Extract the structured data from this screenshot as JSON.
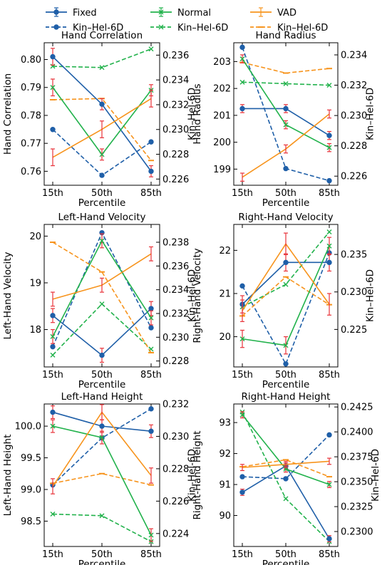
{
  "legend": [
    {
      "label": "Fixed",
      "color": "#1f5fa8",
      "style": "solid",
      "marker": "circle-errorbar"
    },
    {
      "label": "Normal",
      "color": "#22b24c",
      "style": "solid",
      "marker": "x-errorbar"
    },
    {
      "label": "VAD",
      "color": "#f7941d",
      "style": "solid",
      "marker": "errorbar"
    },
    {
      "label": "Kin–Hel-6D",
      "color": "#1f5fa8",
      "style": "dashed",
      "marker": "circle"
    },
    {
      "label": "Kin–Hel-6D",
      "color": "#22b24c",
      "style": "dashed",
      "marker": "x"
    },
    {
      "label": "Kin–Hel-6D",
      "color": "#f7941d",
      "style": "dashed",
      "marker": "dash"
    }
  ],
  "colors": {
    "Fixed": "#1f5fa8",
    "Normal": "#22b24c",
    "VAD": "#f7941d",
    "errorbar": "#e8333a"
  },
  "chart_data": [
    {
      "type": "line",
      "title": "Hand Correlation",
      "categories": [
        "15th",
        "50th",
        "85th"
      ],
      "xlabel": "Percentile",
      "ylabel": "Hand Correlation",
      "y2label": "Kin–Hel-6D",
      "ylim": [
        0.755,
        0.806
      ],
      "yticks": [
        0.76,
        0.77,
        0.78,
        0.79,
        0.8
      ],
      "ytick_labels": [
        "0.76",
        "0.77",
        "0.78",
        "0.79",
        "0.80"
      ],
      "y2lim": [
        0.2255,
        0.237
      ],
      "y2ticks": [
        0.226,
        0.228,
        0.23,
        0.232,
        0.234,
        0.236
      ],
      "y2tick_labels": [
        "0.226",
        "0.228",
        "0.230",
        "0.232",
        "0.234",
        "0.236"
      ],
      "series": [
        {
          "name": "Fixed",
          "values": [
            0.801,
            0.784,
            0.76
          ],
          "err": [
            0.003,
            0.002,
            0.002
          ]
        },
        {
          "name": "Normal",
          "values": [
            0.79,
            0.766,
            0.789
          ],
          "err": [
            0.003,
            0.002,
            0.002
          ]
        },
        {
          "name": "VAD",
          "values": [
            0.765,
            0.775,
            0.786
          ],
          "err": [
            0.003,
            0.003,
            0.003
          ]
        }
      ],
      "series_y2": [
        {
          "name": "Kin–Hel-6D",
          "group": "Fixed",
          "values": [
            0.23,
            0.2263,
            0.229
          ]
        },
        {
          "name": "Kin–Hel-6D",
          "group": "Normal",
          "values": [
            0.2351,
            0.235,
            0.2365
          ]
        },
        {
          "name": "Kin–Hel-6D",
          "group": "VAD",
          "values": [
            0.2324,
            0.2325,
            0.2275
          ]
        }
      ]
    },
    {
      "type": "line",
      "title": "Hand Radius",
      "categories": [
        "15th",
        "50th",
        "85th"
      ],
      "xlabel": "Percentile",
      "ylabel": "Hand Radius",
      "y2label": "Kin–Hel-6D",
      "ylim": [
        198.4,
        203.7
      ],
      "yticks": [
        199,
        200,
        201,
        202,
        203
      ],
      "ytick_labels": [
        "199",
        "200",
        "201",
        "202",
        "203"
      ],
      "y2lim": [
        0.2254,
        0.2348
      ],
      "y2ticks": [
        0.226,
        0.228,
        0.23,
        0.232,
        0.234
      ],
      "y2tick_labels": [
        "0.226",
        "0.228",
        "0.230",
        "0.232",
        "0.234"
      ],
      "series": [
        {
          "name": "Fixed",
          "values": [
            201.25,
            201.25,
            200.25
          ],
          "err": [
            0.15,
            0.15,
            0.15
          ]
        },
        {
          "name": "Normal",
          "values": [
            203.1,
            200.65,
            199.8
          ],
          "err": [
            0.15,
            0.15,
            0.15
          ]
        },
        {
          "name": "VAD",
          "values": [
            198.7,
            199.75,
            201.05
          ],
          "err": [
            0.15,
            0.15,
            0.15
          ]
        }
      ],
      "series_y2": [
        {
          "name": "Kin–Hel-6D",
          "group": "Fixed",
          "values": [
            0.2345,
            0.2265,
            0.2257
          ]
        },
        {
          "name": "Kin–Hel-6D",
          "group": "Normal",
          "values": [
            0.2322,
            0.2321,
            0.232
          ]
        },
        {
          "name": "Kin–Hel-6D",
          "group": "VAD",
          "values": [
            0.2335,
            0.2328,
            0.2331
          ]
        }
      ]
    },
    {
      "type": "line",
      "title": "Left-Hand Velocity",
      "categories": [
        "15th",
        "50th",
        "85th"
      ],
      "xlabel": "Percentile",
      "ylabel": "Left-Hand Velocity",
      "y2label": "Kin–Hel-6D",
      "ylim": [
        17.2,
        20.25
      ],
      "yticks": [
        18,
        19,
        20
      ],
      "ytick_labels": [
        "18",
        "19",
        "20"
      ],
      "y2lim": [
        0.2275,
        0.2395
      ],
      "y2ticks": [
        0.228,
        0.23,
        0.232,
        0.234,
        0.236,
        0.238
      ],
      "y2tick_labels": [
        "0.228",
        "0.230",
        "0.232",
        "0.234",
        "0.236",
        "0.238"
      ],
      "series": [
        {
          "name": "Fixed",
          "values": [
            18.3,
            17.45,
            18.45
          ],
          "err": [
            0.15,
            0.15,
            0.15
          ]
        },
        {
          "name": "Normal",
          "values": [
            17.85,
            19.9,
            18.25
          ],
          "err": [
            0.15,
            0.15,
            0.15
          ]
        },
        {
          "name": "VAD",
          "values": [
            18.65,
            18.95,
            19.62
          ],
          "err": [
            0.15,
            0.15,
            0.15
          ]
        }
      ],
      "series_y2": [
        {
          "name": "Kin–Hel-6D",
          "group": "Fixed",
          "values": [
            0.2292,
            0.2388,
            0.2308
          ]
        },
        {
          "name": "Kin–Hel-6D",
          "group": "Normal",
          "values": [
            0.2285,
            0.2328,
            0.229
          ]
        },
        {
          "name": "Kin–Hel-6D",
          "group": "VAD",
          "values": [
            0.238,
            0.2355,
            0.2287
          ]
        }
      ]
    },
    {
      "type": "line",
      "title": "Right-Hand Velocity",
      "categories": [
        "15th",
        "50th",
        "85th"
      ],
      "xlabel": "Percentile",
      "ylabel": "Right-Hand Velocity",
      "y2label": "Kin–Hel-6D",
      "ylim": [
        19.3,
        22.6
      ],
      "yticks": [
        20,
        21,
        22
      ],
      "ytick_labels": [
        "20",
        "21",
        "22"
      ],
      "y2lim": [
        0.22,
        0.239
      ],
      "y2ticks": [
        0.225,
        0.23,
        0.235
      ],
      "y2tick_labels": [
        "0.225",
        "0.230",
        "0.235"
      ],
      "series": [
        {
          "name": "Fixed",
          "values": [
            20.75,
            21.72,
            21.72
          ],
          "err": [
            0.2,
            0.2,
            0.2
          ]
        },
        {
          "name": "Normal",
          "values": [
            19.95,
            19.8,
            22.1
          ],
          "err": [
            0.2,
            0.2,
            0.2
          ]
        },
        {
          "name": "VAD",
          "values": [
            20.6,
            22.15,
            20.75
          ],
          "err": [
            0.25,
            0.25,
            0.25
          ]
        }
      ],
      "series_y2": [
        {
          "name": "Kin–Hel-6D",
          "group": "Fixed",
          "values": [
            0.2308,
            0.2204,
            0.2352
          ]
        },
        {
          "name": "Kin–Hel-6D",
          "group": "Normal",
          "values": [
            0.228,
            0.231,
            0.238
          ]
        },
        {
          "name": "Kin–Hel-6D",
          "group": "VAD",
          "values": [
            0.2268,
            0.232,
            0.2283
          ]
        }
      ]
    },
    {
      "type": "line",
      "title": "Left-Hand Height",
      "categories": [
        "15th",
        "50th",
        "85th"
      ],
      "xlabel": "Percentile",
      "ylabel": "Left-Hand Height",
      "y2label": "Kin–Hel-6D",
      "ylim": [
        98.1,
        100.35
      ],
      "yticks": [
        98.5,
        99.0,
        99.5,
        100.0
      ],
      "ytick_labels": [
        "98.5",
        "99.0",
        "99.5",
        "100.0"
      ],
      "y2lim": [
        0.2232,
        0.232
      ],
      "y2ticks": [
        0.224,
        0.226,
        0.228,
        0.23,
        0.232
      ],
      "y2tick_labels": [
        "0.224",
        "0.226",
        "0.228",
        "0.230",
        "0.232"
      ],
      "series": [
        {
          "name": "Fixed",
          "values": [
            100.22,
            100.0,
            99.92
          ],
          "err": [
            0.1,
            0.1,
            0.1
          ]
        },
        {
          "name": "Normal",
          "values": [
            100.0,
            99.82,
            98.28
          ],
          "err": [
            0.1,
            0.1,
            0.1
          ]
        },
        {
          "name": "VAD",
          "values": [
            99.05,
            100.22,
            99.22
          ],
          "err": [
            0.12,
            0.12,
            0.12
          ]
        }
      ],
      "series_y2": [
        {
          "name": "Kin–Hel-6D",
          "group": "Fixed",
          "values": [
            0.227,
            0.2299,
            0.2317
          ]
        },
        {
          "name": "Kin–Hel-6D",
          "group": "Normal",
          "values": [
            0.2252,
            0.2251,
            0.2235
          ]
        },
        {
          "name": "Kin–Hel-6D",
          "group": "VAD",
          "values": [
            0.2271,
            0.2277,
            0.227
          ]
        }
      ]
    },
    {
      "type": "line",
      "title": "Right-Hand Height",
      "categories": [
        "15th",
        "50th",
        "85th"
      ],
      "xlabel": "Percentile",
      "ylabel": "Right-Hand Height",
      "y2label": "Kin–Hel-6D",
      "ylim": [
        89.0,
        93.6
      ],
      "yticks": [
        90,
        91,
        92,
        93
      ],
      "ytick_labels": [
        "90",
        "91",
        "92",
        "93"
      ],
      "y2lim": [
        0.2285,
        0.2428
      ],
      "y2ticks": [
        0.23,
        0.2325,
        0.235,
        0.2375,
        0.24,
        0.2425
      ],
      "y2tick_labels": [
        "0.2300",
        "0.2325",
        "0.2350",
        "0.2375",
        "0.2400",
        "0.2425"
      ],
      "series": [
        {
          "name": "Fixed",
          "values": [
            90.75,
            91.6,
            89.25
          ],
          "err": [
            0.1,
            0.1,
            0.1
          ]
        },
        {
          "name": "Normal",
          "values": [
            93.25,
            91.5,
            91.0
          ],
          "err": [
            0.1,
            0.1,
            0.1
          ]
        },
        {
          "name": "VAD",
          "values": [
            91.55,
            91.65,
            91.75
          ],
          "err": [
            0.1,
            0.1,
            0.1
          ]
        }
      ],
      "series_y2": [
        {
          "name": "Kin–Hel-6D",
          "group": "Fixed",
          "values": [
            0.2355,
            0.2353,
            0.2397
          ]
        },
        {
          "name": "Kin–Hel-6D",
          "group": "Normal",
          "values": [
            0.242,
            0.2333,
            0.229
          ]
        },
        {
          "name": "Kin–Hel-6D",
          "group": "VAD",
          "values": [
            0.2365,
            0.2372,
            0.2355
          ]
        }
      ]
    }
  ]
}
